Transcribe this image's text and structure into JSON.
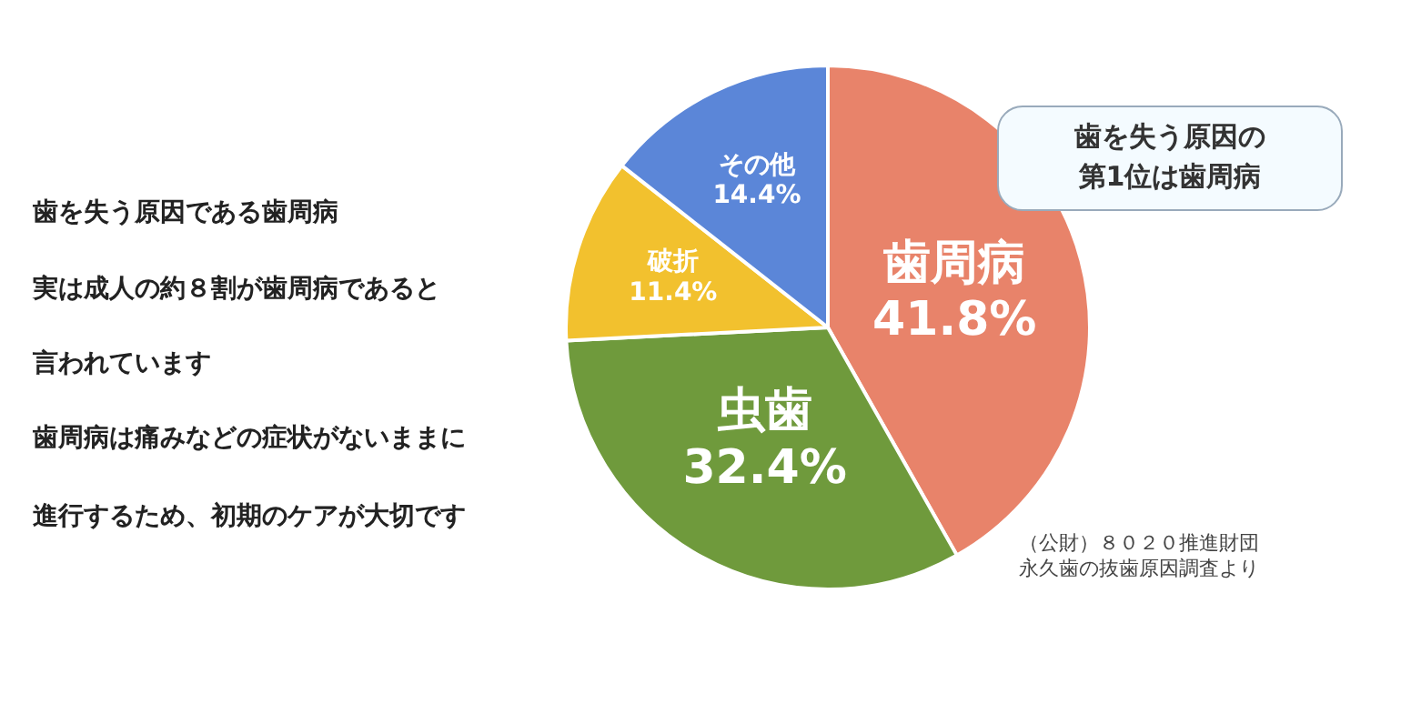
{
  "chart_data": {
    "type": "pie",
    "categories": [
      "歯周病",
      "虫歯",
      "破折",
      "その他"
    ],
    "values": [
      41.8,
      32.4,
      11.4,
      14.4
    ],
    "colors": [
      "#e8836a",
      "#6f9a3c",
      "#f2c12e",
      "#5b86d8"
    ],
    "value_labels": [
      "41.8%",
      "32.4%",
      "11.4%",
      "14.4%"
    ],
    "legend": false,
    "annotations": [
      "歯を失う原因である歯周病",
      "実は成人の約８割が歯周病であると",
      "言われています",
      "歯周病は痛みなどの症状がないままに",
      "進行するため、初期のケアが大切です",
      "歯を失う原因の",
      "第1位は歯周病",
      "（公財）８０２０推進財団",
      "永久歯の抜歯原因調査より"
    ]
  }
}
